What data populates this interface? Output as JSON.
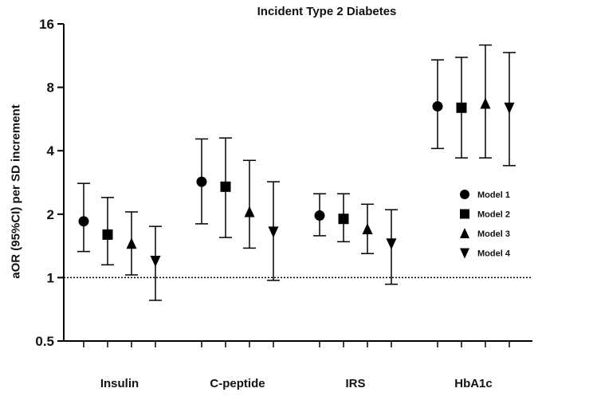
{
  "chart_data": {
    "type": "scatter",
    "title": "Incident Type 2 Diabetes",
    "ylabel": "aOR (95%CI) per SD increment",
    "xlabel": "",
    "yscale": "log2",
    "ylim": [
      0.5,
      16
    ],
    "yticks": [
      0.5,
      1,
      2,
      4,
      8,
      16
    ],
    "ytick_labels": [
      "0.5",
      "1",
      "2",
      "4",
      "8",
      "16"
    ],
    "reference_line": 1,
    "categories": [
      "Insulin",
      "C-peptide",
      "IRS",
      "HbA1c"
    ],
    "legend_position": "right-middle",
    "series": [
      {
        "name": "Model 1",
        "marker": "circle",
        "values": [
          1.85,
          2.85,
          1.97,
          6.5
        ],
        "lower": [
          1.33,
          1.8,
          1.58,
          4.1
        ],
        "upper": [
          2.8,
          4.55,
          2.5,
          10.8
        ]
      },
      {
        "name": "Model 2",
        "marker": "square",
        "values": [
          1.6,
          2.7,
          1.9,
          6.4
        ],
        "lower": [
          1.15,
          1.55,
          1.48,
          3.7
        ],
        "upper": [
          2.4,
          4.6,
          2.5,
          11.1
        ]
      },
      {
        "name": "Model 3",
        "marker": "triangle-up",
        "values": [
          1.45,
          2.05,
          1.7,
          6.7
        ],
        "lower": [
          1.03,
          1.38,
          1.3,
          3.7
        ],
        "upper": [
          2.05,
          3.6,
          2.23,
          12.7
        ]
      },
      {
        "name": "Model 4",
        "marker": "triangle-down",
        "values": [
          1.2,
          1.65,
          1.45,
          6.4
        ],
        "lower": [
          0.78,
          0.97,
          0.93,
          3.4
        ],
        "upper": [
          1.75,
          2.85,
          2.1,
          11.7
        ]
      }
    ]
  }
}
